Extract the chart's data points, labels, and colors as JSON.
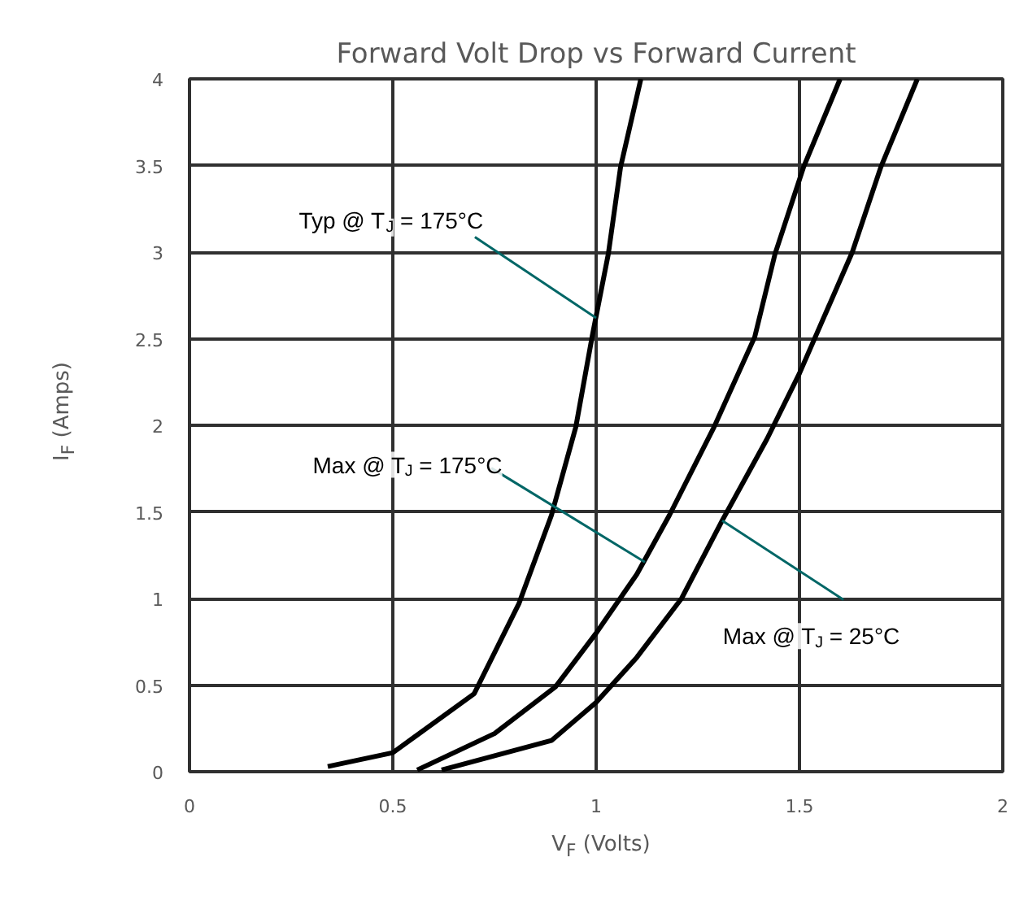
{
  "chart_data": {
    "type": "line",
    "title": "Forward Volt Drop vs Forward Current",
    "xlabel": "V$_{F}$ (Volts)",
    "ylabel": "I$_{F}$ (Amps)",
    "xlim": [
      0,
      2
    ],
    "ylim": [
      0,
      4
    ],
    "xticks": [
      0,
      0.5,
      1,
      1.5,
      2
    ],
    "yticks": [
      0,
      0.5,
      1,
      1.5,
      2,
      2.5,
      3,
      3.5,
      4
    ],
    "grid": true,
    "marker": "none",
    "line_style": "solid",
    "series": [
      {
        "color": "#000000",
        "x": [
          0.34,
          0.5,
          0.7,
          0.81,
          0.89,
          0.95,
          0.99,
          1.03,
          1.06,
          1.11
        ],
        "values": [
          0.03,
          0.11,
          0.45,
          0.97,
          1.48,
          1.99,
          2.51,
          2.99,
          3.49,
          4.0
        ]
      },
      {
        "color": "#000000",
        "x": [
          0.56,
          0.75,
          0.9,
          1.0,
          1.1,
          1.18,
          1.29,
          1.39,
          1.44,
          1.51,
          1.6
        ],
        "values": [
          0.01,
          0.22,
          0.49,
          0.8,
          1.14,
          1.48,
          1.99,
          2.51,
          2.99,
          3.49,
          4.0
        ]
      },
      {
        "color": "#000000",
        "x": [
          0.62,
          0.89,
          1.0,
          1.1,
          1.21,
          1.31,
          1.42,
          1.5,
          1.63,
          1.7,
          1.79
        ],
        "values": [
          0.01,
          0.18,
          0.4,
          0.66,
          1.0,
          1.45,
          1.92,
          2.3,
          3.0,
          3.49,
          4.0
        ]
      }
    ],
    "annotations": [
      {
        "text": "Typ @ T$_{J}$ = 175°C",
        "x": 1.0,
        "y": 2.62
      },
      {
        "text": "Max @ T$_{J}$ = 175°C",
        "x": 1.12,
        "y": 1.21
      },
      {
        "text": "Max @ T$_{J}$ = 25°C",
        "x": 1.31,
        "y": 1.45
      }
    ]
  }
}
